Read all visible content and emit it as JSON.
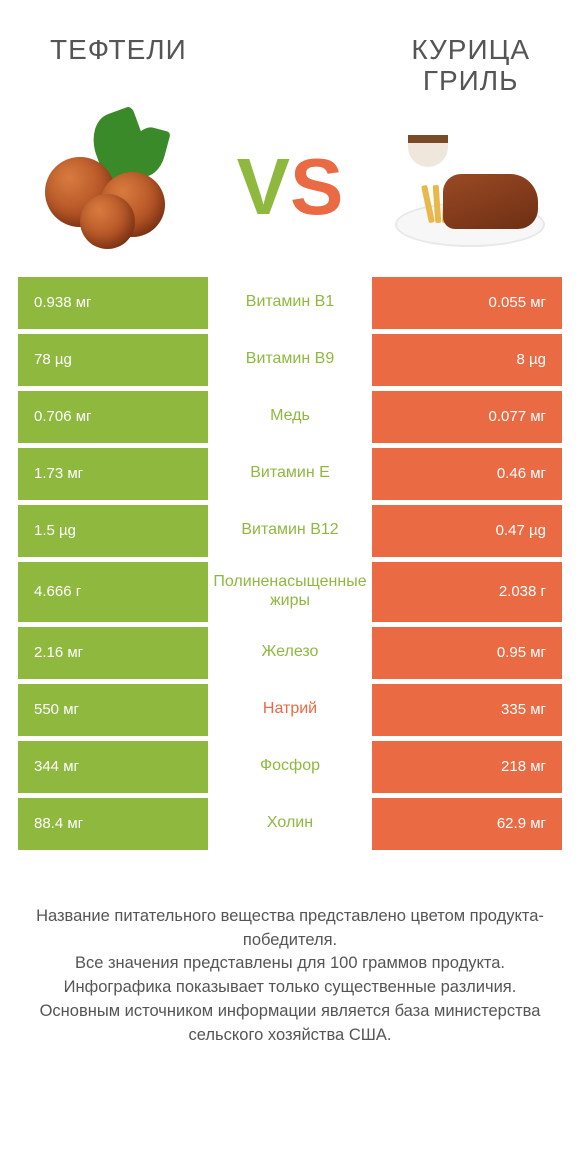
{
  "header": {
    "left_title": "ТЕФТЕЛИ",
    "right_title": "КУРИЦА\nГРИЛЬ",
    "vs_v": "V",
    "vs_s": "S"
  },
  "colors": {
    "green": "#8fb93e",
    "orange": "#ea6a44",
    "label_green": "#8fb93e",
    "label_orange": "#ea6a44",
    "text": "#555555",
    "bg": "#ffffff"
  },
  "rows": [
    {
      "label": "Витамин B1",
      "winner": "left",
      "left_value": "0.938 мг",
      "right_value": "0.055 мг",
      "left_width": 100,
      "right_width": 100
    },
    {
      "label": "Витамин B9",
      "winner": "left",
      "left_value": "78 µg",
      "right_value": "8 µg",
      "left_width": 100,
      "right_width": 100
    },
    {
      "label": "Медь",
      "winner": "left",
      "left_value": "0.706 мг",
      "right_value": "0.077 мг",
      "left_width": 100,
      "right_width": 100
    },
    {
      "label": "Витамин E",
      "winner": "left",
      "left_value": "1.73 мг",
      "right_value": "0.46 мг",
      "left_width": 100,
      "right_width": 100
    },
    {
      "label": "Витамин B12",
      "winner": "left",
      "left_value": "1.5 µg",
      "right_value": "0.47 µg",
      "left_width": 100,
      "right_width": 100
    },
    {
      "label": "Полиненасыщенные жиры",
      "winner": "left",
      "left_value": "4.666 г",
      "right_value": "2.038 г",
      "left_width": 100,
      "right_width": 100,
      "tall": true
    },
    {
      "label": "Железо",
      "winner": "left",
      "left_value": "2.16 мг",
      "right_value": "0.95 мг",
      "left_width": 100,
      "right_width": 100
    },
    {
      "label": "Натрий",
      "winner": "right",
      "left_value": "550 мг",
      "right_value": "335 мг",
      "left_width": 100,
      "right_width": 100
    },
    {
      "label": "Фосфор",
      "winner": "left",
      "left_value": "344 мг",
      "right_value": "218 мг",
      "left_width": 100,
      "right_width": 100
    },
    {
      "label": "Холин",
      "winner": "left",
      "left_value": "88.4 мг",
      "right_value": "62.9 мг",
      "left_width": 100,
      "right_width": 100
    }
  ],
  "footer": {
    "line1": "Название питательного вещества представлено цветом продукта-победителя.",
    "line2": "Все значения представлены для 100 граммов продукта.",
    "line3": "Инфографика показывает только существенные различия.",
    "line4": "Основным источником информации является база министерства сельского хозяйства США."
  }
}
